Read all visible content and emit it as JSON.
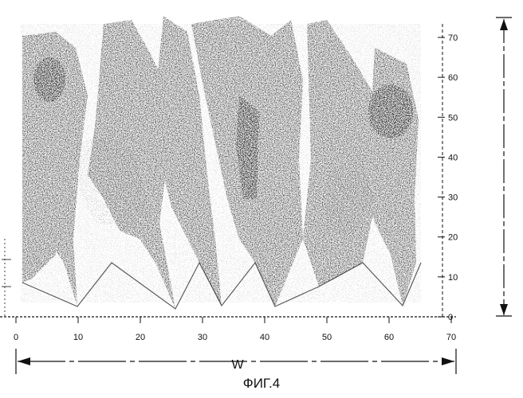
{
  "figure": {
    "caption": "ФИГ.4",
    "width_label": "W",
    "x_ticks": [
      "0",
      "10",
      "20",
      "30",
      "40",
      "50",
      "60",
      "70"
    ],
    "y_ticks": [
      "0",
      "10",
      "20",
      "30",
      "40",
      "50",
      "60",
      "70"
    ],
    "colors": {
      "ink": "#111111",
      "dark": "#2b2b2b",
      "mid": "#555555",
      "paper": "#ffffff"
    }
  }
}
